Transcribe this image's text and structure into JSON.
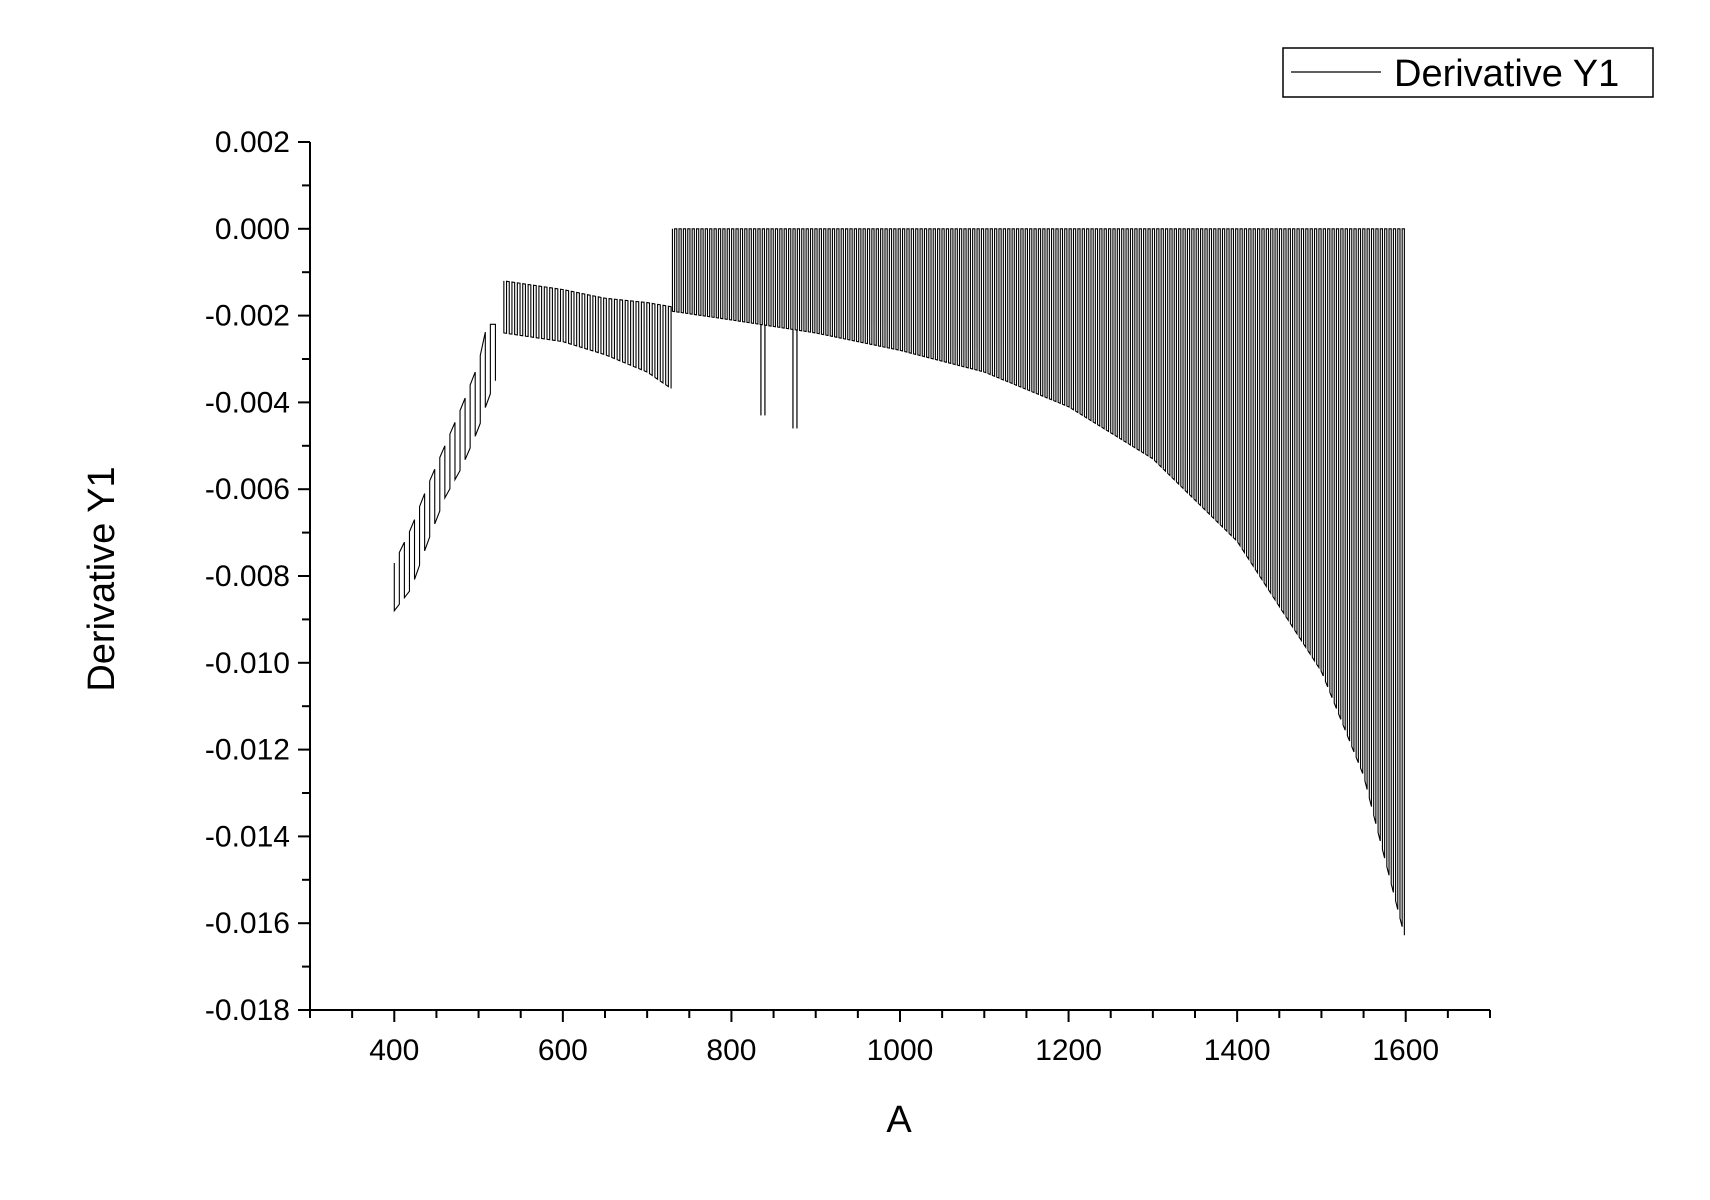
{
  "chart_data": {
    "type": "line",
    "title": "",
    "xlabel": "A",
    "ylabel": "Derivative Y1",
    "xlim": [
      300,
      1700
    ],
    "ylim": [
      -0.018,
      0.002
    ],
    "x_ticks": [
      400,
      600,
      800,
      1000,
      1200,
      1400,
      1600
    ],
    "x_tick_labels": [
      "400",
      "600",
      "800",
      "1000",
      "1200",
      "1400",
      "1600"
    ],
    "y_ticks": [
      0.002,
      0.0,
      -0.002,
      -0.004,
      -0.006,
      -0.008,
      -0.01,
      -0.012,
      -0.014,
      -0.016,
      -0.018
    ],
    "y_tick_labels": [
      "0.002",
      "0.000",
      "-0.002",
      "-0.004",
      "-0.006",
      "-0.008",
      "-0.010",
      "-0.012",
      "-0.014",
      "-0.016",
      "-0.018"
    ],
    "grid": false,
    "legend_position": "top-right",
    "line_color": "#000000",
    "series": [
      {
        "name": "Derivative Y1",
        "envelope": {
          "segments": [
            {
              "x_range": [
                400,
                520
              ],
              "lower": [
                [
                  400,
                  -0.0088
                ],
                [
                  420,
                  -0.0083
                ],
                [
                  440,
                  -0.0072
                ],
                [
                  460,
                  -0.0062
                ],
                [
                  480,
                  -0.0055
                ],
                [
                  500,
                  -0.0046
                ],
                [
                  510,
                  -0.004
                ],
                [
                  520,
                  -0.0035
                ]
              ],
              "upper": [
                [
                  400,
                  -0.0077
                ],
                [
                  420,
                  -0.0069
                ],
                [
                  440,
                  -0.0059
                ],
                [
                  460,
                  -0.005
                ],
                [
                  480,
                  -0.0041
                ],
                [
                  500,
                  -0.0031
                ],
                [
                  510,
                  -0.0022
                ],
                [
                  520,
                  -0.0022
                ]
              ]
            },
            {
              "x_range": [
                530,
                730
              ],
              "lower": [
                [
                  530,
                  -0.0024
                ],
                [
                  600,
                  -0.0026
                ],
                [
                  650,
                  -0.0029
                ],
                [
                  700,
                  -0.0033
                ],
                [
                  730,
                  -0.0037
                ]
              ],
              "upper": [
                [
                  530,
                  -0.0012
                ],
                [
                  600,
                  -0.0014
                ],
                [
                  650,
                  -0.0016
                ],
                [
                  700,
                  -0.0017
                ],
                [
                  730,
                  -0.0018
                ]
              ]
            },
            {
              "x_range": [
                730,
                1600
              ],
              "lower": [
                [
                  730,
                  -0.0019
                ],
                [
                  800,
                  -0.0021
                ],
                [
                  900,
                  -0.0024
                ],
                [
                  1000,
                  -0.0028
                ],
                [
                  1100,
                  -0.0033
                ],
                [
                  1200,
                  -0.0041
                ],
                [
                  1300,
                  -0.0053
                ],
                [
                  1400,
                  -0.0072
                ],
                [
                  1500,
                  -0.0102
                ],
                [
                  1550,
                  -0.0126
                ],
                [
                  1600,
                  -0.0164
                ]
              ],
              "upper": [
                [
                  730,
                  0.0
                ],
                [
                  1600,
                  0.0
                ]
              ]
            }
          ],
          "spikes": [
            {
              "x": 835,
              "y": -0.0043
            },
            {
              "x": 873,
              "y": -0.0046
            }
          ]
        }
      }
    ]
  }
}
